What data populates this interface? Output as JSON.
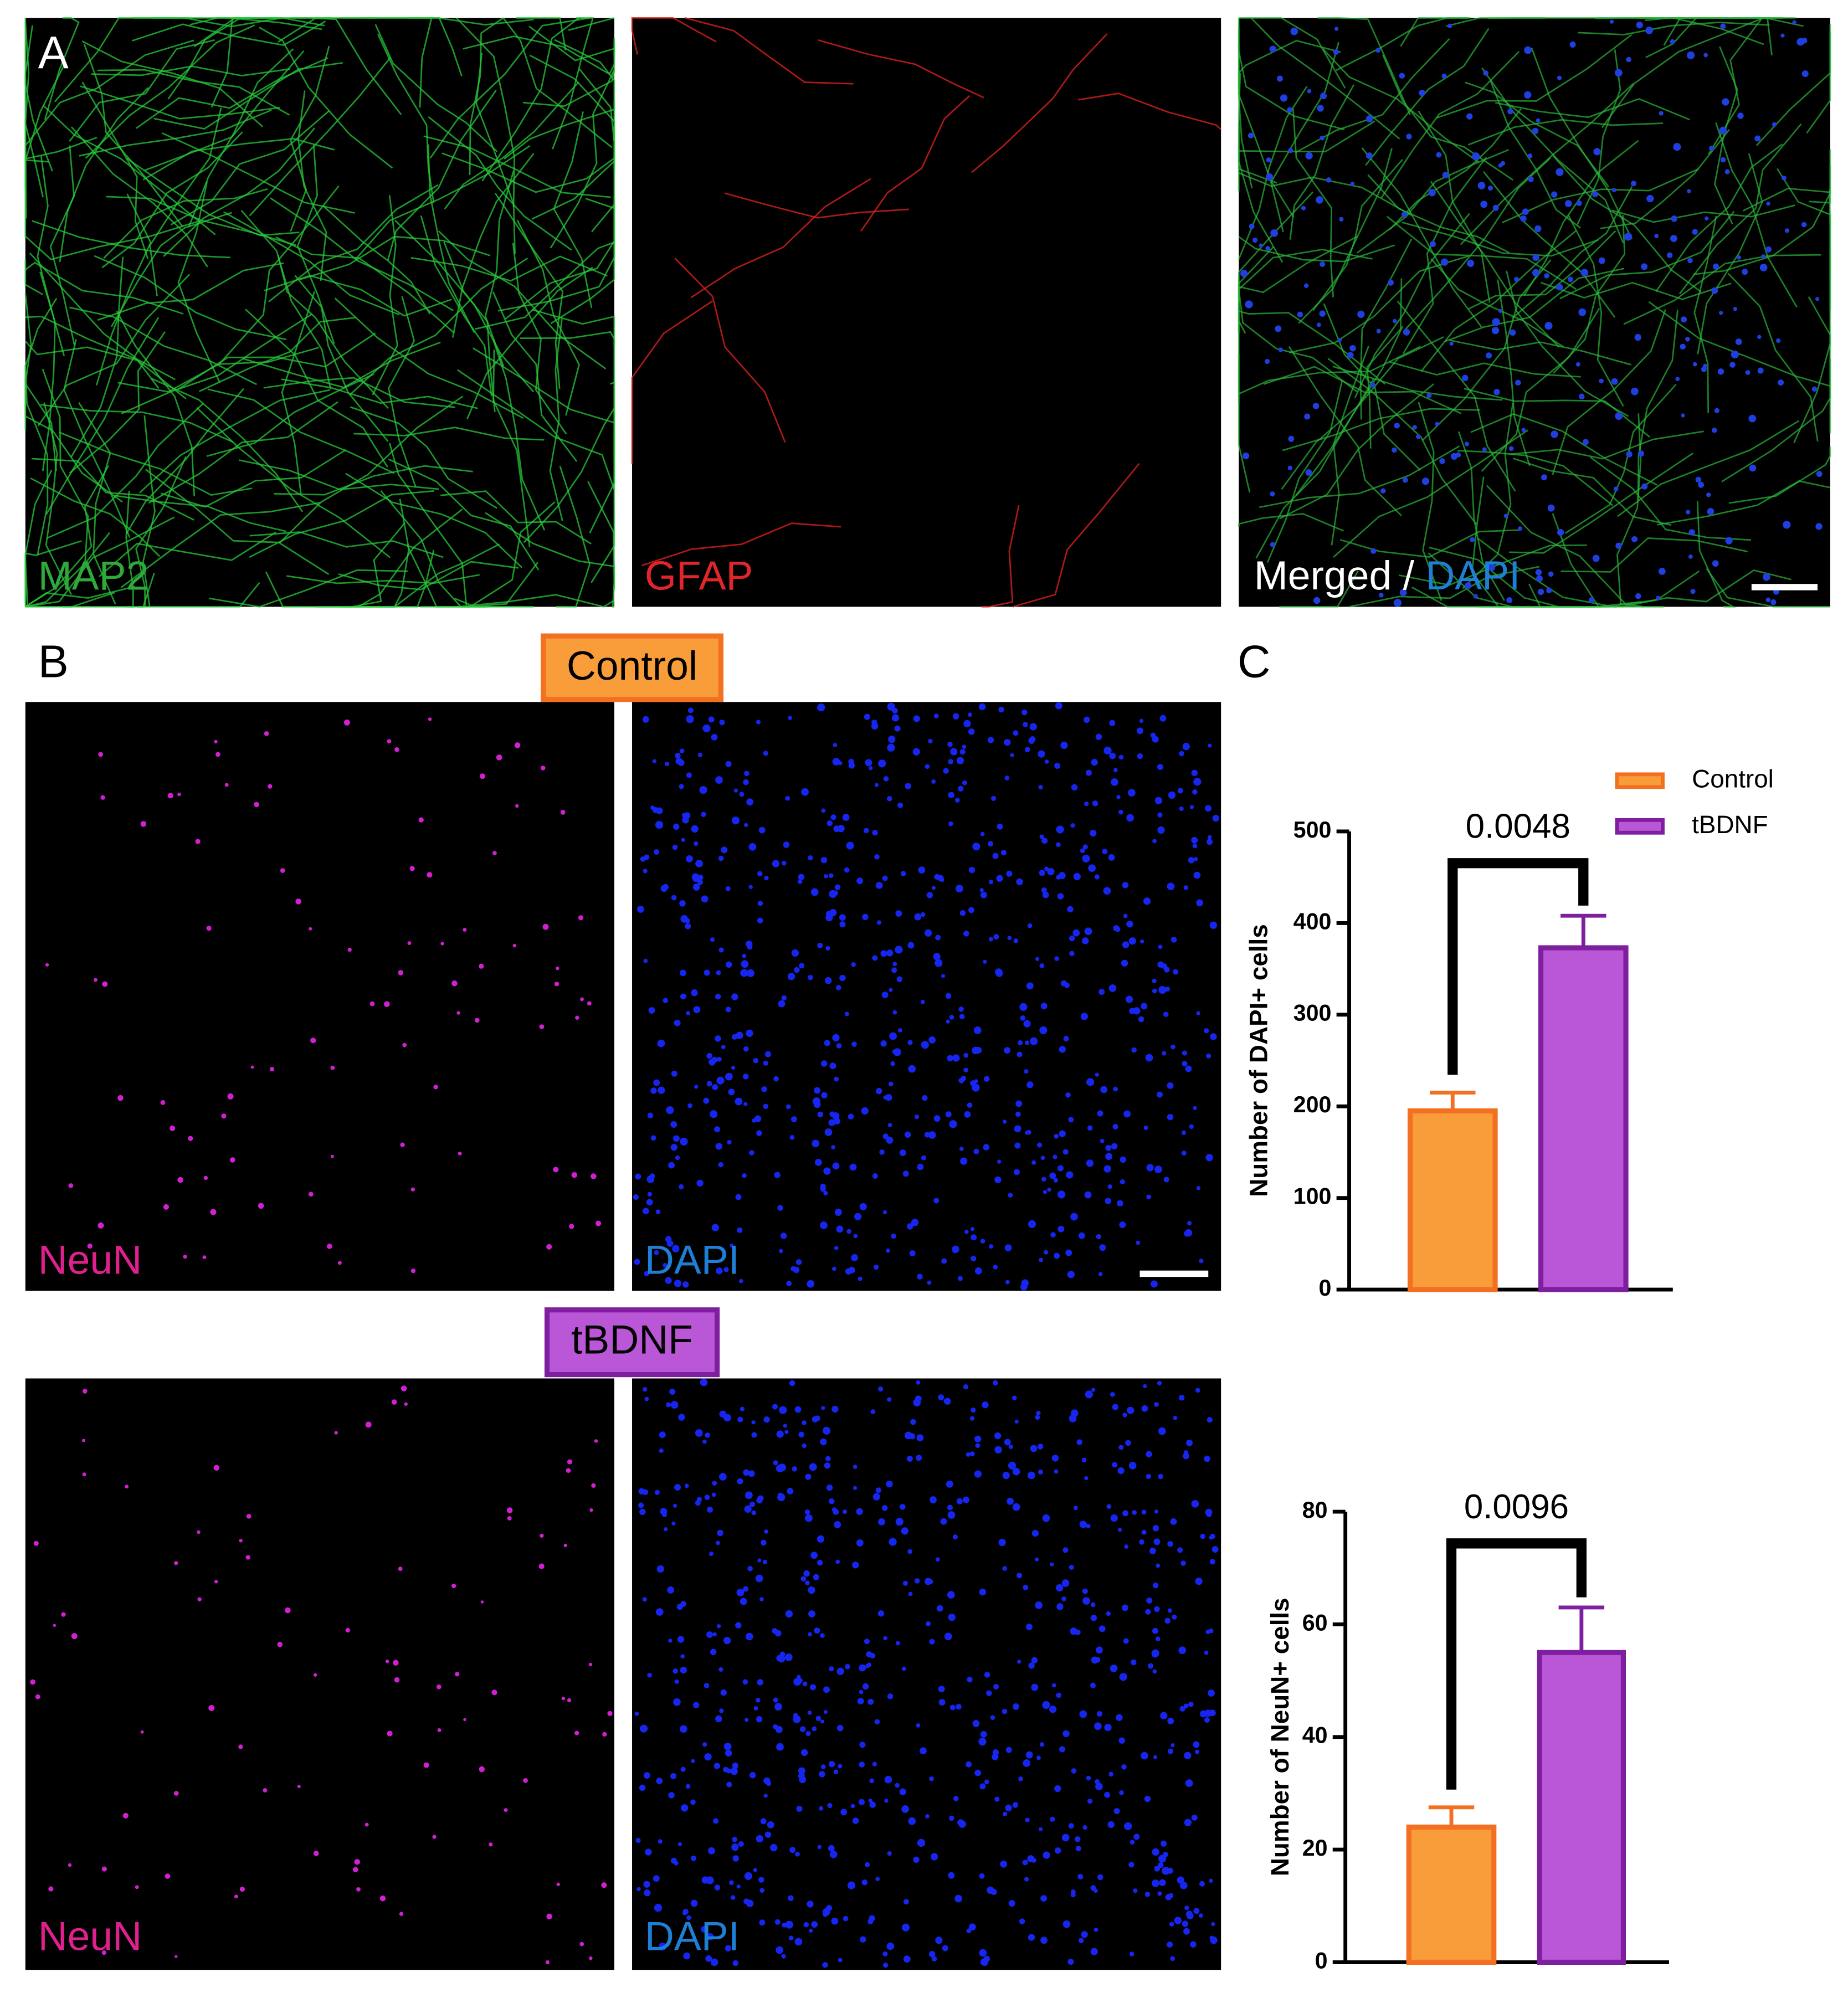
{
  "figure": {
    "panel_labels": [
      "A",
      "B",
      "C"
    ],
    "panel_a": {
      "labels": [
        "MAP2",
        "GFAP",
        "Merged /",
        "DAPI"
      ]
    },
    "panel_b": {
      "groups": [
        "Control",
        "tBDNF"
      ],
      "labels": [
        "NeuN",
        "DAPI"
      ]
    }
  },
  "chart_data": [
    {
      "type": "bar",
      "y_label": "Number of DAPI+ cells",
      "annotation": "0.0048",
      "ylim": [
        0,
        500
      ],
      "yticks": [
        0,
        100,
        200,
        300,
        400,
        500
      ],
      "legend": "top-right",
      "series": [
        {
          "name": "Control",
          "color": "#f99d3b",
          "edge_color": "#f36f21",
          "values": [
            195
          ],
          "errors": [
            20
          ]
        },
        {
          "name": "tBDNF",
          "color": "#b957d6",
          "edge_color": "#7e1fa0",
          "values": [
            373
          ],
          "errors": [
            35
          ]
        }
      ]
    },
    {
      "type": "bar",
      "y_label": "Number of NeuN+ cells",
      "annotation": "0.0096",
      "ylim": [
        0,
        80
      ],
      "yticks": [
        0,
        20,
        40,
        60,
        80
      ],
      "series": [
        {
          "color": "#f99d3b",
          "edge_color": "#f36f21",
          "values": [
            24
          ],
          "errors": [
            3.5
          ]
        },
        {
          "color": "#b957d6",
          "edge_color": "#7e1fa0",
          "values": [
            55
          ],
          "errors": [
            8
          ]
        }
      ]
    }
  ]
}
